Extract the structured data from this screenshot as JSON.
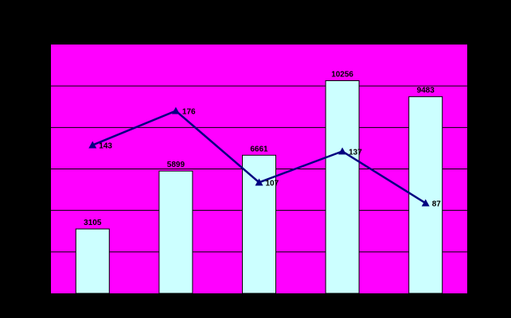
{
  "chart_data": {
    "type": "bar",
    "title": "",
    "xlabel": "",
    "ylabel": "",
    "categories": [
      "",
      "",
      "",
      "",
      ""
    ],
    "series": [
      {
        "type": "bar",
        "values": [
          3105,
          5899,
          6661,
          10256,
          9483
        ],
        "color": "#CCFFFF"
      },
      {
        "type": "line",
        "values": [
          143,
          176,
          107,
          137,
          87
        ],
        "color": "#000080",
        "marker": "triangle"
      }
    ],
    "bar_ylim": [
      0,
      12000
    ],
    "line_ylim": [
      0,
      240
    ],
    "grid": true,
    "legend": "none",
    "colors": {
      "background": "#000000",
      "plot_area": "#FF00FF",
      "gridline": "#000000",
      "bar_fill": "#CCFFFF",
      "line": "#000080"
    }
  }
}
